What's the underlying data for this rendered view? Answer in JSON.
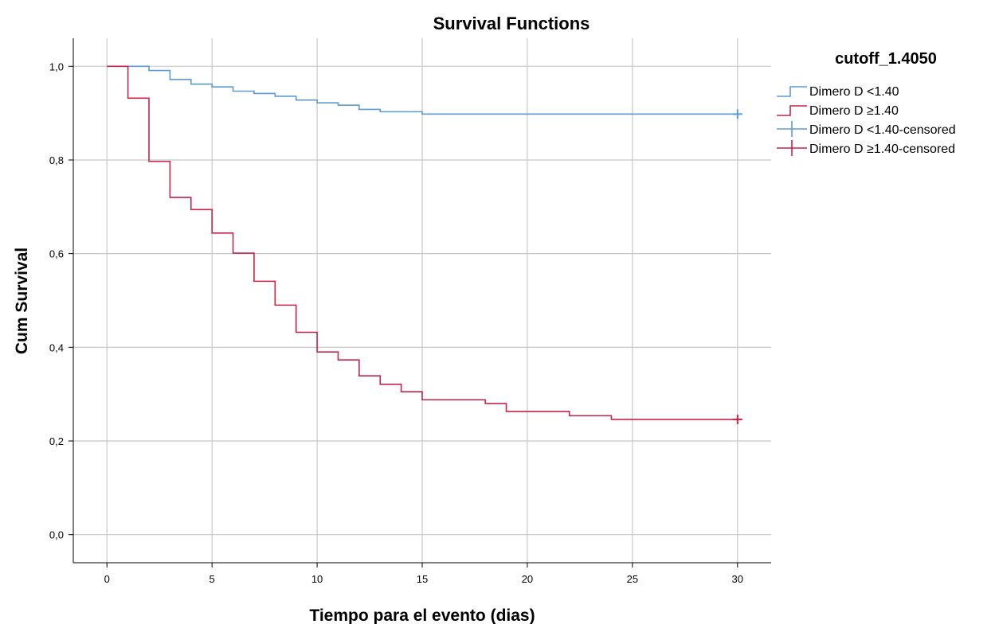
{
  "chart_data": {
    "type": "line",
    "title": "Survival Functions",
    "xlabel": "Tiempo para el evento (dias)",
    "ylabel": "Cum Survival",
    "x_ticks": [
      0,
      5,
      10,
      15,
      20,
      25,
      30
    ],
    "x_tick_labels": [
      "0",
      "5",
      "10",
      "15",
      "20",
      "25",
      "30"
    ],
    "y_ticks": [
      0.0,
      0.2,
      0.4,
      0.6,
      0.8,
      1.0
    ],
    "y_tick_labels": [
      "0,0",
      "0,2",
      "0,4",
      "0,6",
      "0,8",
      "1,0"
    ],
    "xlim": [
      -1.6,
      31.6
    ],
    "ylim": [
      -0.06,
      1.06
    ],
    "grid": true,
    "legend_position": "right",
    "legend": {
      "title": "cutoff_1.4050",
      "entries": [
        {
          "label": "Dimero D  <1.40",
          "kind": "step",
          "color": "#5b9bd5"
        },
        {
          "label": "Dimero D ≥1.40",
          "kind": "step",
          "color": "#c8234a"
        },
        {
          "label": "Dimero D  <1.40-censored",
          "kind": "cross",
          "color": "#5b9bd5"
        },
        {
          "label": "Dimero D ≥1.40-censored",
          "kind": "cross",
          "color": "#c8234a"
        }
      ]
    },
    "series": [
      {
        "name": "Dimero D  <1.40",
        "color": "#5b9bd5",
        "step": true,
        "x": [
          0,
          2,
          3,
          4,
          5,
          6,
          7,
          8,
          9,
          10,
          11,
          12,
          13,
          15,
          30
        ],
        "y": [
          1.0,
          0.991,
          0.972,
          0.962,
          0.956,
          0.947,
          0.942,
          0.936,
          0.928,
          0.922,
          0.917,
          0.908,
          0.903,
          0.898,
          0.898
        ],
        "censored": [
          {
            "x": 30,
            "y": 0.898
          }
        ]
      },
      {
        "name": "Dimero D ≥1.40",
        "color": "#c8234a",
        "step": true,
        "x": [
          0,
          1,
          2,
          3,
          4,
          5,
          6,
          7,
          8,
          9,
          10,
          11,
          12,
          13,
          14,
          15,
          18,
          19,
          22,
          24,
          30
        ],
        "y": [
          1.0,
          0.932,
          0.797,
          0.72,
          0.694,
          0.644,
          0.601,
          0.541,
          0.49,
          0.432,
          0.39,
          0.373,
          0.339,
          0.321,
          0.305,
          0.288,
          0.28,
          0.263,
          0.254,
          0.246,
          0.246
        ],
        "censored": [
          {
            "x": 30,
            "y": 0.246
          }
        ]
      }
    ]
  }
}
